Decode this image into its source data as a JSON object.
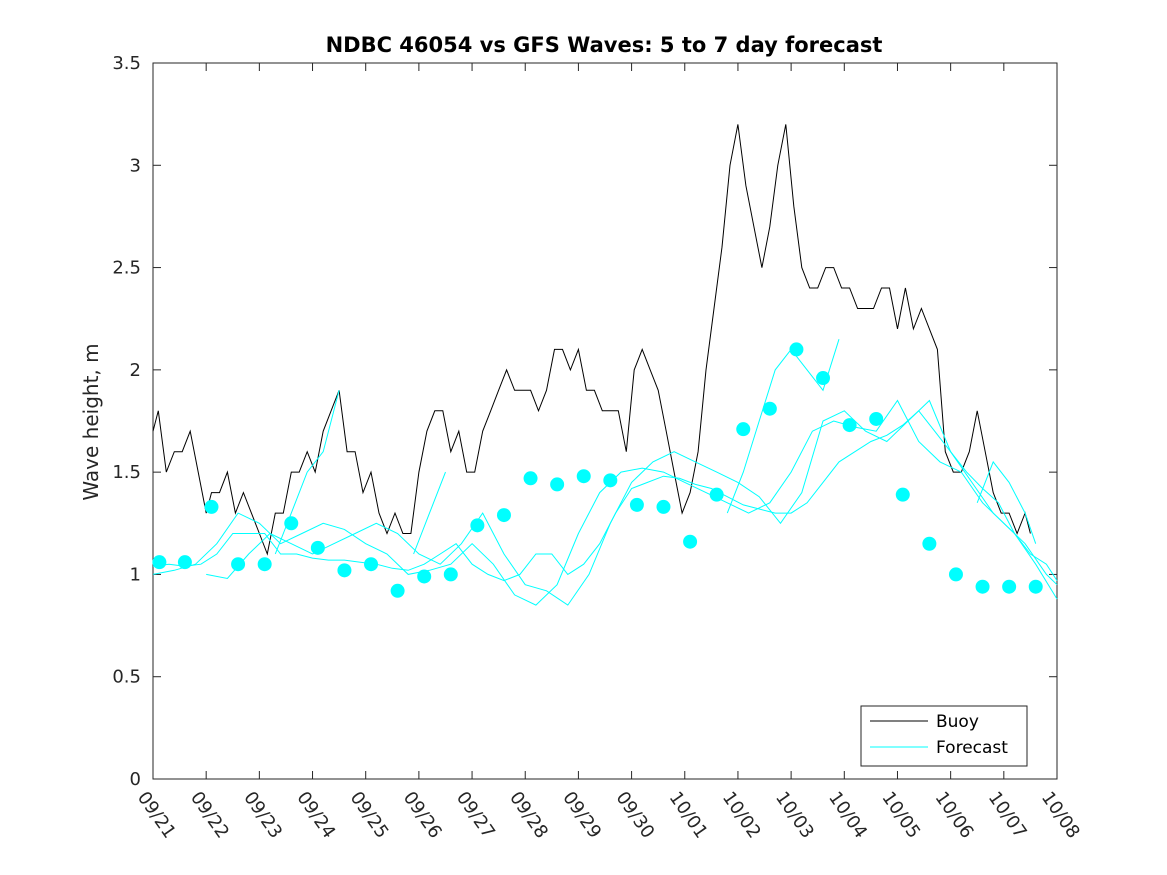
{
  "chart_data": {
    "type": "line",
    "title": "NDBC 46054 vs GFS Waves: 5 to 7 day forecast",
    "xlabel": "",
    "ylabel": "Wave height, m",
    "xlim": [
      0,
      17
    ],
    "ylim": [
      0,
      3.5
    ],
    "yticks": [
      0,
      0.5,
      1,
      1.5,
      2,
      2.5,
      3,
      3.5
    ],
    "ytick_labels": [
      "0",
      "0.5",
      "1",
      "1.5",
      "2",
      "2.5",
      "3",
      "3.5"
    ],
    "xtick_labels": [
      "09/21",
      "09/22",
      "09/23",
      "09/24",
      "09/25",
      "09/26",
      "09/27",
      "09/28",
      "09/29",
      "09/30",
      "10/01",
      "10/02",
      "10/03",
      "10/04",
      "10/05",
      "10/06",
      "10/07",
      "10/08"
    ],
    "legend": {
      "placement": "bottom-right",
      "entries": [
        "Buoy",
        "Forecast"
      ]
    },
    "colors": {
      "buoy": "#000000",
      "forecast": "#00ffff",
      "axes": "#262626"
    },
    "buoy": {
      "name": "Buoy",
      "x": [
        0,
        0.1,
        0.25,
        0.4,
        0.55,
        0.7,
        0.85,
        1.0,
        1.1,
        1.25,
        1.4,
        1.55,
        1.7,
        1.85,
        2.0,
        2.15,
        2.3,
        2.45,
        2.6,
        2.75,
        2.9,
        3.05,
        3.2,
        3.35,
        3.5,
        3.65,
        3.8,
        3.95,
        4.1,
        4.25,
        4.4,
        4.55,
        4.7,
        4.85,
        5.0,
        5.15,
        5.3,
        5.45,
        5.6,
        5.75,
        5.9,
        6.05,
        6.2,
        6.35,
        6.5,
        6.65,
        6.8,
        6.95,
        7.1,
        7.25,
        7.4,
        7.55,
        7.7,
        7.85,
        8.0,
        8.15,
        8.3,
        8.45,
        8.6,
        8.75,
        8.9,
        9.05,
        9.2,
        9.35,
        9.5,
        9.65,
        9.8,
        9.95,
        10.1,
        10.25,
        10.4,
        10.55,
        10.7,
        10.85,
        11.0,
        11.15,
        11.3,
        11.45,
        11.6,
        11.75,
        11.9,
        12.05,
        12.2,
        12.35,
        12.5,
        12.65,
        12.8,
        12.95,
        13.1,
        13.25,
        13.4,
        13.55,
        13.7,
        13.85,
        14.0,
        14.15,
        14.3,
        14.45,
        14.6,
        14.75,
        14.9,
        15.05,
        15.2,
        15.35,
        15.5,
        15.65,
        15.8,
        15.95,
        16.1,
        16.25,
        16.4,
        16.5
      ],
      "values": [
        1.7,
        1.8,
        1.5,
        1.6,
        1.6,
        1.7,
        1.5,
        1.3,
        1.4,
        1.4,
        1.5,
        1.3,
        1.4,
        1.3,
        1.2,
        1.1,
        1.3,
        1.3,
        1.5,
        1.5,
        1.6,
        1.5,
        1.7,
        1.8,
        1.9,
        1.6,
        1.6,
        1.4,
        1.5,
        1.3,
        1.2,
        1.3,
        1.2,
        1.2,
        1.5,
        1.7,
        1.8,
        1.8,
        1.6,
        1.7,
        1.5,
        1.5,
        1.7,
        1.8,
        1.9,
        2.0,
        1.9,
        1.9,
        1.9,
        1.8,
        1.9,
        2.1,
        2.1,
        2.0,
        2.1,
        1.9,
        1.9,
        1.8,
        1.8,
        1.8,
        1.6,
        2.0,
        2.1,
        2.0,
        1.9,
        1.7,
        1.5,
        1.3,
        1.4,
        1.6,
        2.0,
        2.3,
        2.6,
        3.0,
        3.2,
        2.9,
        2.7,
        2.5,
        2.7,
        3.0,
        3.2,
        2.8,
        2.5,
        2.4,
        2.4,
        2.5,
        2.5,
        2.4,
        2.4,
        2.3,
        2.3,
        2.3,
        2.4,
        2.4,
        2.2,
        2.4,
        2.2,
        2.3,
        2.2,
        2.1,
        1.6,
        1.5,
        1.5,
        1.6,
        1.8,
        1.6,
        1.4,
        1.3,
        1.3,
        1.2,
        1.3,
        1.2
      ]
    },
    "forecast": {
      "name": "Forecast",
      "lines": [
        {
          "x": [
            0,
            0.3,
            0.6,
            0.9,
            1.2,
            1.5,
            1.8,
            2.1,
            2.4,
            2.7,
            3.0,
            3.3,
            3.6,
            3.9,
            4.2,
            4.5,
            4.8,
            5.1,
            5.4,
            5.7,
            6.0,
            6.3,
            6.6,
            6.9,
            7.2,
            7.5,
            7.8,
            8.1,
            8.4,
            8.7,
            9.0,
            9.3,
            9.6,
            9.9,
            10.2,
            10.5,
            10.8,
            11.1,
            11.4,
            11.7,
            12.0,
            12.3,
            12.6,
            12.9,
            13.2,
            13.5,
            13.8,
            14.1,
            14.4,
            14.7,
            15.0,
            15.3,
            15.6,
            15.9,
            16.2,
            16.5,
            16.8,
            17.0
          ],
          "values": [
            1.04,
            1.05,
            1.04,
            1.05,
            1.1,
            1.2,
            1.2,
            1.2,
            1.1,
            1.1,
            1.08,
            1.07,
            1.07,
            1.06,
            1.05,
            1.03,
            1.02,
            1.05,
            1.1,
            1.15,
            1.05,
            1.0,
            0.97,
            1.0,
            1.1,
            1.1,
            1.0,
            1.05,
            1.15,
            1.3,
            1.42,
            1.45,
            1.48,
            1.47,
            1.44,
            1.42,
            1.38,
            1.34,
            1.32,
            1.3,
            1.3,
            1.35,
            1.45,
            1.55,
            1.6,
            1.65,
            1.68,
            1.73,
            1.8,
            1.7,
            1.6,
            1.5,
            1.42,
            1.35,
            1.2,
            1.1,
            1.05,
            0.97
          ]
        },
        {
          "x": [
            0,
            0.4,
            0.8,
            1.2,
            1.6,
            2.0,
            2.4,
            2.8,
            3.2,
            3.6,
            4.0,
            4.4,
            4.8,
            5.2,
            5.6,
            6.0,
            6.4,
            6.8,
            7.2,
            7.6,
            8.0,
            8.4,
            8.8,
            9.2,
            9.6,
            10.0,
            10.4,
            10.8,
            11.2,
            11.6,
            12.0,
            12.4,
            12.8,
            13.2,
            13.6,
            14.0,
            14.4,
            14.8,
            15.2,
            15.6,
            16.0,
            16.4,
            16.8,
            17.0
          ],
          "values": [
            1.0,
            1.02,
            1.05,
            1.15,
            1.3,
            1.25,
            1.15,
            1.2,
            1.25,
            1.22,
            1.15,
            1.1,
            1.0,
            1.02,
            1.05,
            1.15,
            1.05,
            0.9,
            0.85,
            0.95,
            1.2,
            1.4,
            1.5,
            1.52,
            1.5,
            1.45,
            1.4,
            1.35,
            1.3,
            1.35,
            1.5,
            1.7,
            1.75,
            1.72,
            1.7,
            1.85,
            1.65,
            1.55,
            1.5,
            1.35,
            1.25,
            1.15,
            1.0,
            0.95
          ]
        },
        {
          "x": [
            1.0,
            1.4,
            1.8,
            2.2,
            2.6,
            3.0,
            3.4,
            3.8,
            4.2,
            4.6,
            5.0,
            5.4,
            5.8,
            6.2,
            6.6,
            7.0,
            7.4,
            7.8,
            8.2,
            8.6,
            9.0,
            9.4,
            9.8,
            10.2,
            10.6,
            11.0,
            11.4,
            11.8,
            12.2,
            12.6,
            13.0,
            13.4,
            13.8,
            14.2,
            14.6,
            15.0,
            15.4,
            15.8,
            16.2,
            16.6,
            17.0
          ],
          "values": [
            1.0,
            0.98,
            1.1,
            1.2,
            1.15,
            1.1,
            1.15,
            1.2,
            1.25,
            1.2,
            1.1,
            1.05,
            1.15,
            1.3,
            1.1,
            0.95,
            0.92,
            0.85,
            1.0,
            1.25,
            1.45,
            1.55,
            1.6,
            1.55,
            1.5,
            1.45,
            1.38,
            1.25,
            1.4,
            1.75,
            1.8,
            1.7,
            1.65,
            1.75,
            1.85,
            1.6,
            1.45,
            1.3,
            1.2,
            1.05,
            0.88
          ]
        },
        {
          "x": [
            2.3,
            2.6,
            2.9,
            3.2,
            3.5
          ],
          "values": [
            1.1,
            1.3,
            1.5,
            1.6,
            1.9
          ]
        },
        {
          "x": [
            4.9,
            5.2,
            5.5
          ],
          "values": [
            1.1,
            1.3,
            1.5
          ]
        },
        {
          "x": [
            10.8,
            11.1,
            11.4,
            11.7,
            12.0,
            12.3,
            12.6,
            12.9
          ],
          "values": [
            1.3,
            1.5,
            1.75,
            2.0,
            2.1,
            2.0,
            1.9,
            2.15
          ]
        },
        {
          "x": [
            15.5,
            15.8,
            16.1,
            16.4,
            16.6
          ],
          "values": [
            1.35,
            1.55,
            1.45,
            1.3,
            1.15
          ]
        }
      ],
      "points": {
        "x": [
          0.12,
          0.6,
          1.1,
          1.6,
          2.1,
          2.6,
          3.1,
          3.6,
          4.1,
          4.6,
          5.1,
          5.6,
          6.1,
          6.6,
          7.1,
          7.6,
          8.1,
          8.6,
          9.1,
          9.6,
          10.1,
          10.6,
          11.1,
          11.6,
          12.1,
          12.6,
          13.1,
          13.6,
          14.1,
          14.6,
          15.1,
          15.6,
          16.1,
          16.6
        ],
        "values": [
          1.06,
          1.06,
          1.33,
          1.05,
          1.05,
          1.25,
          1.13,
          1.02,
          1.05,
          0.92,
          0.99,
          1.0,
          1.24,
          1.29,
          1.47,
          1.44,
          1.48,
          1.46,
          1.34,
          1.33,
          1.16,
          1.39,
          1.71,
          1.81,
          2.1,
          1.96,
          1.73,
          1.76,
          1.39,
          1.15,
          1.0,
          0.94,
          0.94,
          0.94
        ]
      }
    }
  }
}
